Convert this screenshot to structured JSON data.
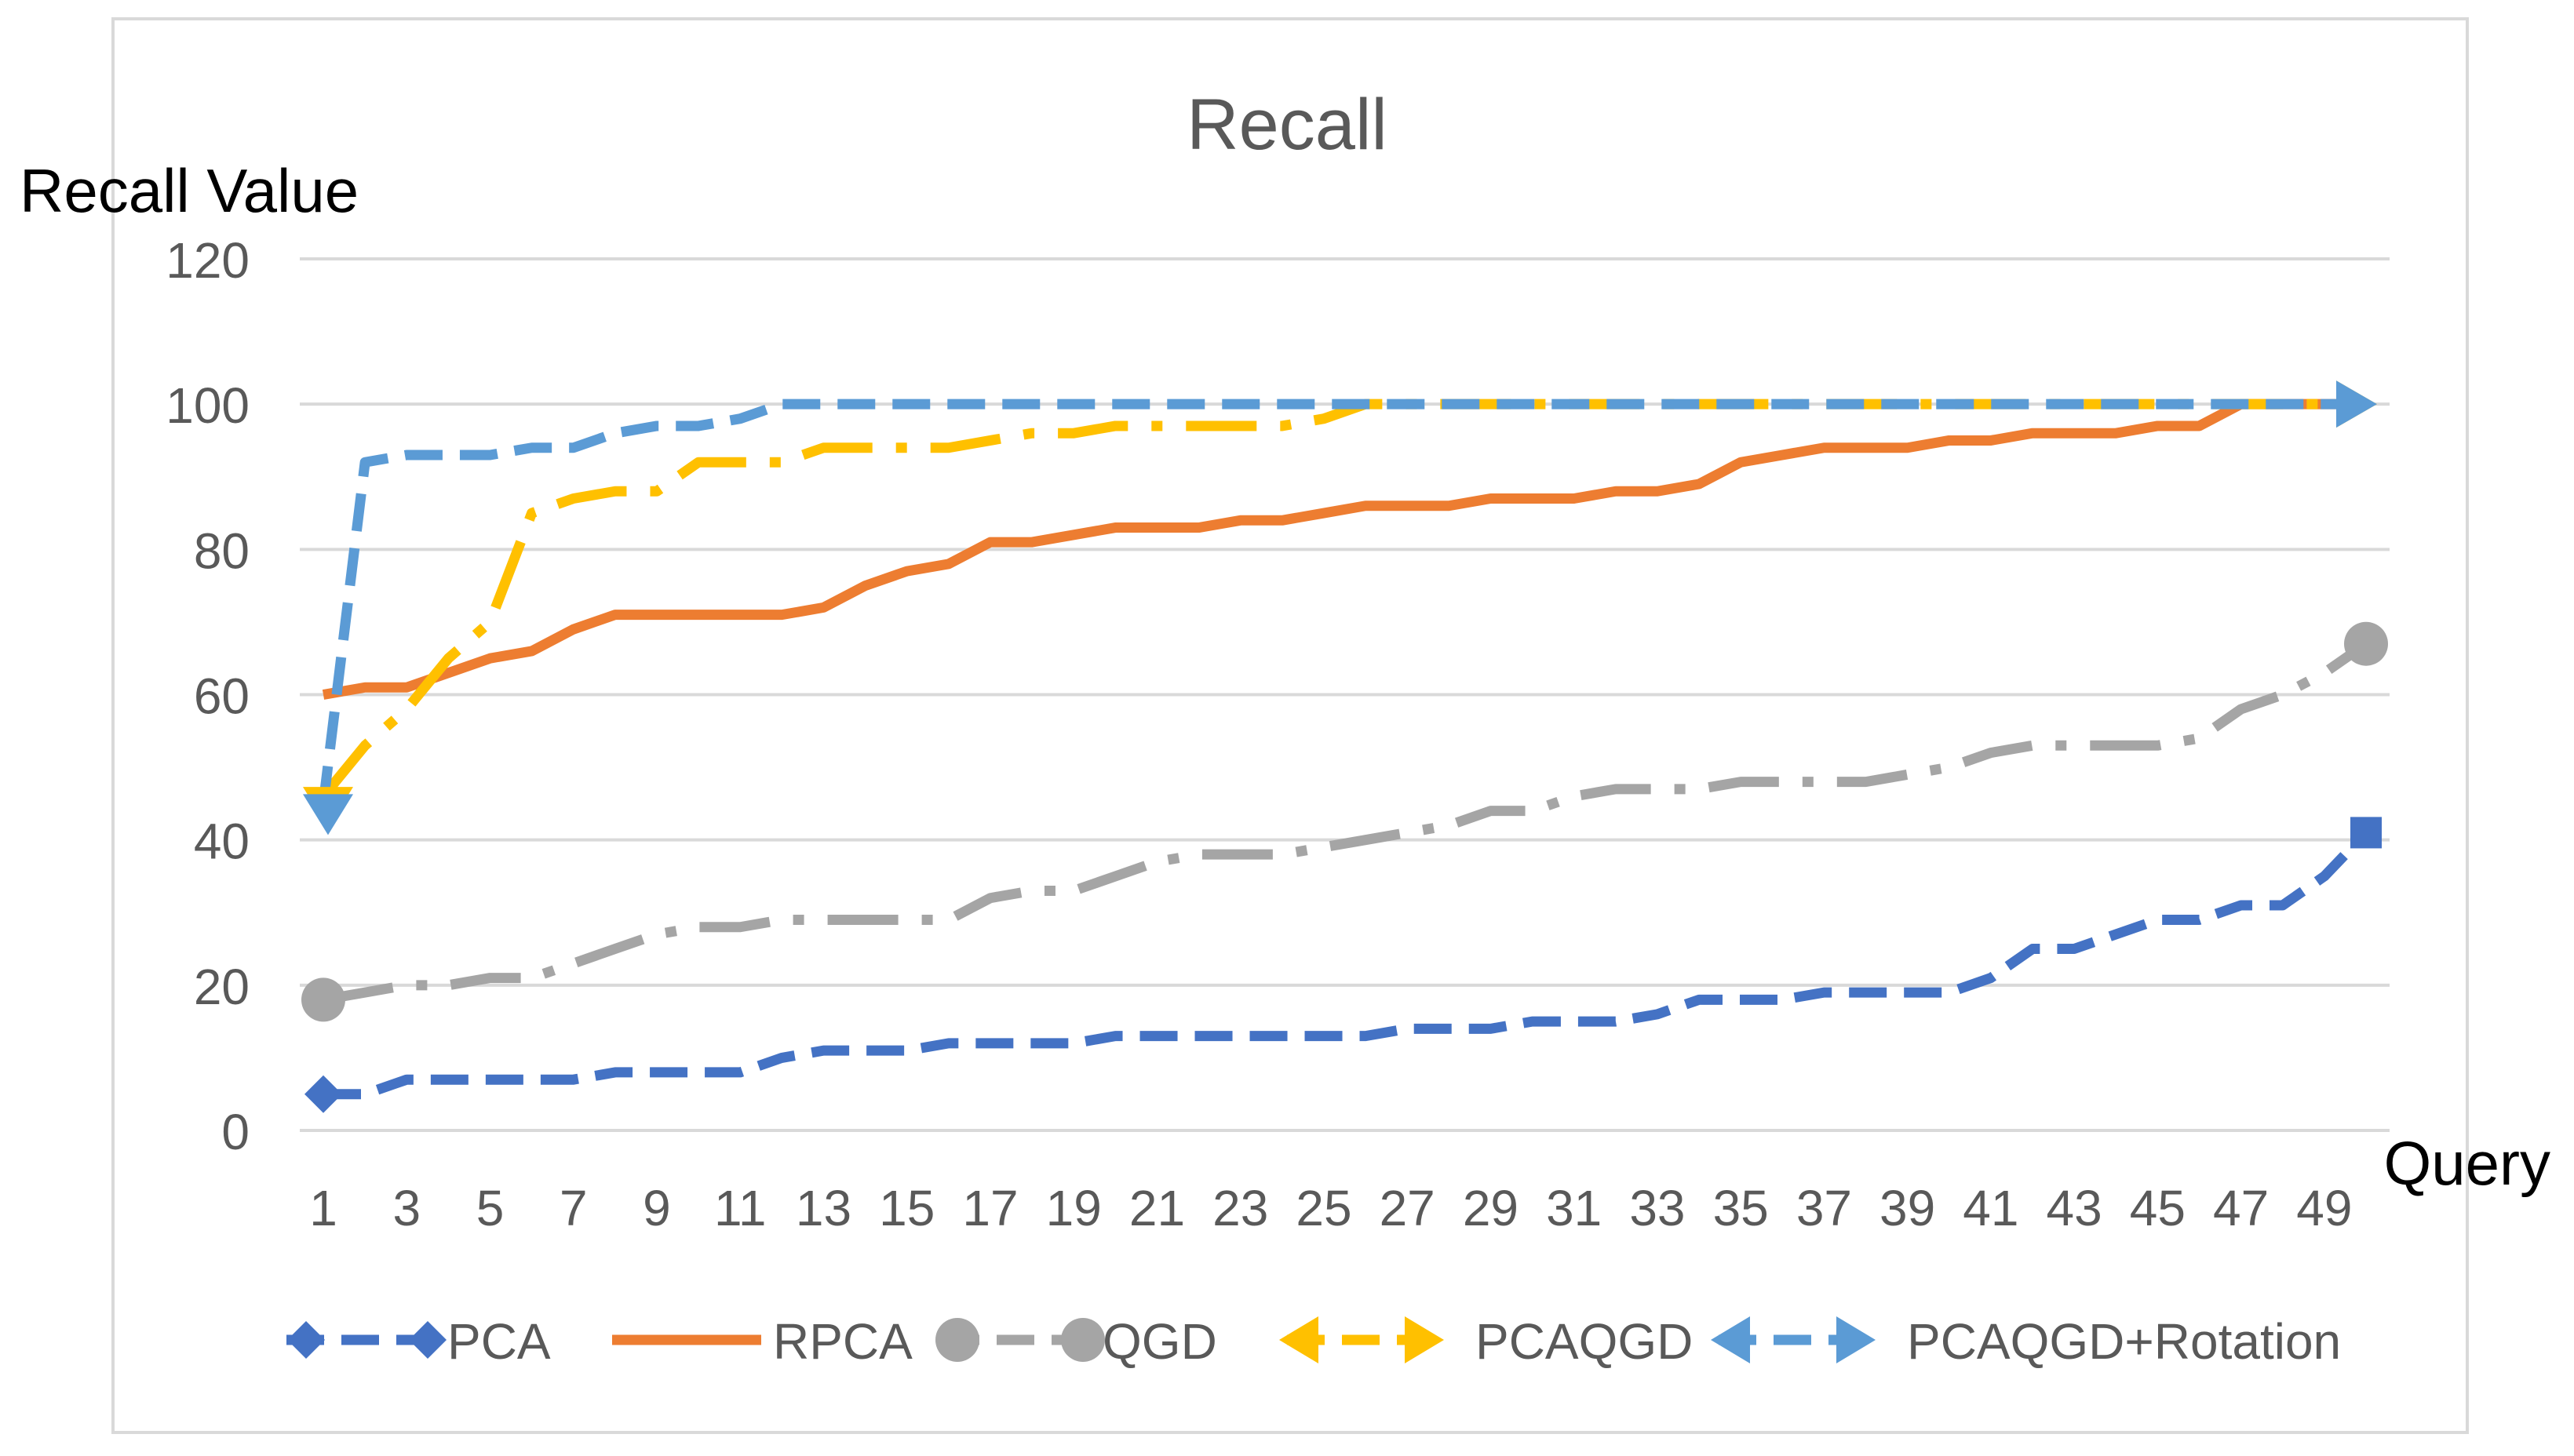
{
  "chart_data": {
    "type": "line",
    "title": "Recall",
    "ylabel": "Recall Value",
    "xlabel": "Query",
    "ylim": [
      0,
      120
    ],
    "yticks": [
      0,
      20,
      40,
      60,
      80,
      100,
      120
    ],
    "x": [
      1,
      2,
      3,
      4,
      5,
      6,
      7,
      8,
      9,
      10,
      11,
      12,
      13,
      14,
      15,
      16,
      17,
      18,
      19,
      20,
      21,
      22,
      23,
      24,
      25,
      26,
      27,
      28,
      29,
      30,
      31,
      32,
      33,
      34,
      35,
      36,
      37,
      38,
      39,
      40,
      41,
      42,
      43,
      44,
      45,
      46,
      47,
      48,
      49,
      50
    ],
    "xticks": [
      1,
      3,
      5,
      7,
      9,
      11,
      13,
      15,
      17,
      19,
      21,
      23,
      25,
      27,
      29,
      31,
      33,
      35,
      37,
      39,
      41,
      43,
      45,
      47,
      49
    ],
    "grid": true,
    "legend_position": "bottom",
    "series": [
      {
        "name": "PCA",
        "color": "#4472C4",
        "dash": "dash",
        "marker": "diamond",
        "values": [
          5,
          5,
          7,
          7,
          7,
          7,
          7,
          8,
          8,
          8,
          8,
          10,
          11,
          11,
          11,
          12,
          12,
          12,
          12,
          13,
          13,
          13,
          13,
          13,
          13,
          13,
          14,
          14,
          14,
          15,
          15,
          15,
          16,
          18,
          18,
          18,
          19,
          19,
          19,
          19,
          21,
          25,
          25,
          27,
          29,
          29,
          31,
          31,
          35,
          41
        ]
      },
      {
        "name": "RPCA",
        "color": "#ED7D31",
        "dash": "solid",
        "marker": "none",
        "values": [
          60,
          61,
          61,
          63,
          65,
          66,
          69,
          71,
          71,
          71,
          71,
          71,
          72,
          75,
          77,
          78,
          81,
          81,
          82,
          83,
          83,
          83,
          84,
          84,
          85,
          86,
          86,
          86,
          87,
          87,
          87,
          88,
          88,
          89,
          92,
          93,
          94,
          94,
          94,
          95,
          95,
          96,
          96,
          96,
          97,
          97,
          100,
          100,
          100,
          100
        ]
      },
      {
        "name": "QGD",
        "color": "#A5A5A5",
        "dash": "longdashdot",
        "marker": "circle",
        "values": [
          18,
          19,
          20,
          20,
          21,
          21,
          23,
          25,
          27,
          28,
          28,
          29,
          29,
          29,
          29,
          29,
          32,
          33,
          33,
          35,
          37,
          38,
          38,
          38,
          39,
          40,
          41,
          42,
          44,
          44,
          46,
          47,
          47,
          47,
          48,
          48,
          48,
          48,
          49,
          50,
          52,
          53,
          53,
          53,
          53,
          54,
          58,
          60,
          63,
          67
        ]
      },
      {
        "name": "PCAQGD",
        "color": "#FFC000",
        "dash": "longdashdot",
        "marker": "arrow",
        "values": [
          46,
          53,
          58,
          65,
          70,
          85,
          87,
          88,
          88,
          92,
          92,
          92,
          94,
          94,
          94,
          94,
          95,
          96,
          96,
          97,
          97,
          97,
          97,
          97,
          98,
          100,
          100,
          100,
          100,
          100,
          100,
          100,
          100,
          100,
          100,
          100,
          100,
          100,
          100,
          100,
          100,
          100,
          100,
          100,
          100,
          100,
          100,
          100,
          100,
          100
        ]
      },
      {
        "name": "PCAQGD+Rotation",
        "color": "#5B9BD5",
        "dash": "dash",
        "marker": "arrow",
        "values": [
          45,
          92,
          93,
          93,
          93,
          94,
          94,
          96,
          97,
          97,
          98,
          100,
          100,
          100,
          100,
          100,
          100,
          100,
          100,
          100,
          100,
          100,
          100,
          100,
          100,
          100,
          100,
          100,
          100,
          100,
          100,
          100,
          100,
          100,
          100,
          100,
          100,
          100,
          100,
          100,
          100,
          100,
          100,
          100,
          100,
          100,
          100,
          100,
          100,
          100
        ]
      }
    ]
  }
}
